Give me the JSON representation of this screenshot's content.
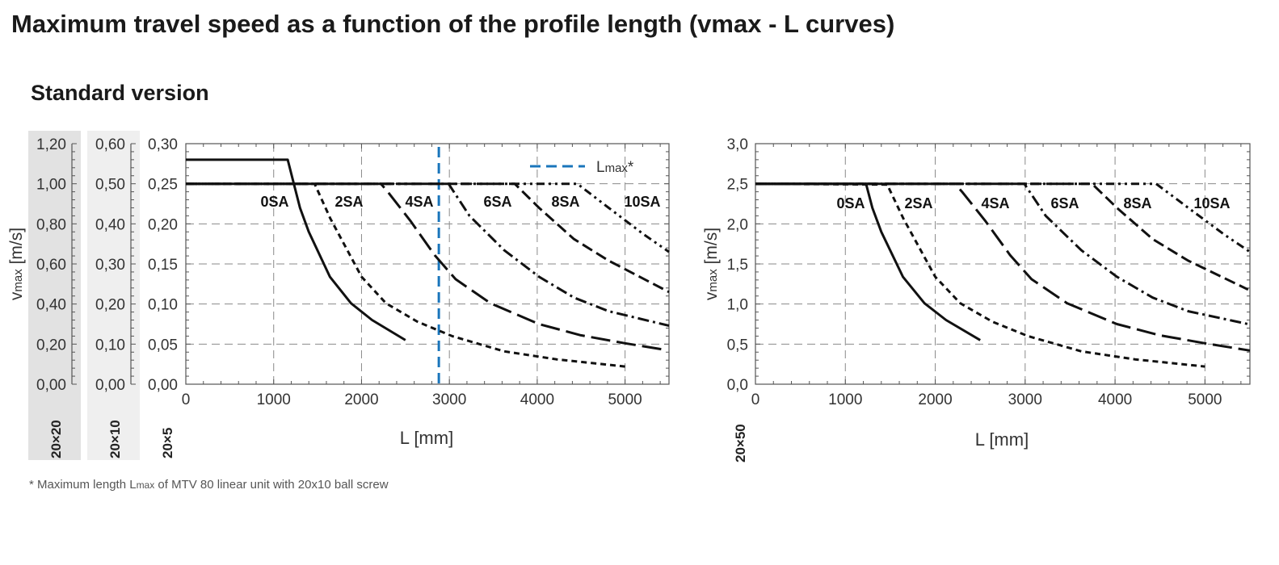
{
  "title": "Maximum travel speed as a function of the profile length (vmax - L curves)",
  "subtitle": "Standard version",
  "footnote": {
    "pre": "* Maximum length L",
    "sub": "max",
    "post": " of MTV 80 linear unit with 20x10 ball screw"
  },
  "colors": {
    "curve": "#111111",
    "grid": "#8a8a8a",
    "lmax": "#1a75bb",
    "band_20x20": "#e2e2e2",
    "band_20x10": "#efefef"
  },
  "chart_data": [
    {
      "type": "line",
      "ylabel": {
        "v": "v",
        "sub": "max",
        "unit": " [m/s]"
      },
      "xlabel": "L [mm]",
      "xlim": [
        0,
        5500
      ],
      "ylim": [
        0,
        0.3
      ],
      "xticks": [
        "0",
        "1000",
        "2000",
        "3000",
        "4000",
        "5000"
      ],
      "grid": true,
      "extra_axes": [
        {
          "name": "20×20",
          "ylim": [
            0,
            1.2
          ],
          "ticks": [
            "0,00",
            "0,20",
            "0,40",
            "0,60",
            "0,80",
            "1,00",
            "1,20"
          ]
        },
        {
          "name": "20×10",
          "ylim": [
            0,
            0.6
          ],
          "ticks": [
            "0,00",
            "0,10",
            "0,20",
            "0,30",
            "0,40",
            "0,50",
            "0,60"
          ]
        }
      ],
      "main_axis": {
        "name": "20×5",
        "ticks": [
          "0,00",
          "0,05",
          "0,10",
          "0,15",
          "0,20",
          "0,25",
          "0,30"
        ]
      },
      "reference_line": {
        "label_pre": "L",
        "label_sub": "max",
        "label_post": "*",
        "x": 2880,
        "legend": "top-right"
      },
      "series": [
        {
          "name": "0SA",
          "dash": "solid",
          "points": [
            [
              0,
              0.28
            ],
            [
              1160,
              0.28
            ],
            [
              1230,
              0.25
            ],
            [
              1300,
              0.22
            ],
            [
              1400,
              0.19
            ],
            [
              1640,
              0.134
            ],
            [
              1880,
              0.101
            ],
            [
              2120,
              0.08
            ],
            [
              2500,
              0.055
            ]
          ]
        },
        {
          "name": "2SA",
          "dash": "short-dash",
          "points": [
            [
              0,
              0.25
            ],
            [
              1466,
              0.25
            ],
            [
              1644,
              0.207
            ],
            [
              2000,
              0.134
            ],
            [
              2278,
              0.101
            ],
            [
              2635,
              0.078
            ],
            [
              3031,
              0.06
            ],
            [
              3625,
              0.041
            ],
            [
              4220,
              0.031
            ],
            [
              5000,
              0.022
            ]
          ]
        },
        {
          "name": "4SA",
          "dash": "long-dash",
          "points": [
            [
              0,
              0.25
            ],
            [
              2220,
              0.25
            ],
            [
              2298,
              0.24
            ],
            [
              2555,
              0.204
            ],
            [
              2833,
              0.161
            ],
            [
              3071,
              0.131
            ],
            [
              3467,
              0.101
            ],
            [
              4021,
              0.075
            ],
            [
              4497,
              0.061
            ],
            [
              5000,
              0.051
            ],
            [
              5450,
              0.043
            ]
          ]
        },
        {
          "name": "6SA",
          "dash": "dash-dot",
          "points": [
            [
              0,
              0.25
            ],
            [
              2991,
              0.25
            ],
            [
              3229,
              0.21
            ],
            [
              3625,
              0.167
            ],
            [
              4021,
              0.134
            ],
            [
              4418,
              0.108
            ],
            [
              4814,
              0.091
            ],
            [
              5500,
              0.073
            ]
          ]
        },
        {
          "name": "8SA",
          "dash": "dash",
          "points": [
            [
              0,
              0.25
            ],
            [
              3744,
              0.25
            ],
            [
              4021,
              0.22
            ],
            [
              4418,
              0.181
            ],
            [
              4814,
              0.154
            ],
            [
              5500,
              0.115
            ]
          ]
        },
        {
          "name": "10SA",
          "dash": "dash-dot-dot",
          "points": [
            [
              0,
              0.25
            ],
            [
              4457,
              0.25
            ],
            [
              4814,
              0.22
            ],
            [
              5210,
              0.187
            ],
            [
              5500,
              0.165
            ]
          ]
        }
      ]
    },
    {
      "type": "line",
      "ylabel": {
        "v": "v",
        "sub": "max",
        "unit": " [m/s]"
      },
      "xlabel": "L [mm]",
      "xlim": [
        0,
        5500
      ],
      "ylim": [
        0,
        3.0
      ],
      "xticks": [
        "0",
        "1000",
        "2000",
        "3000",
        "4000",
        "5000"
      ],
      "grid": true,
      "main_axis": {
        "name": "20×50",
        "ticks": [
          "0,0",
          "0,5",
          "1,0",
          "1,5",
          "2,0",
          "2,5",
          "3,0"
        ]
      },
      "series": [
        {
          "name": "0SA",
          "dash": "solid",
          "points": [
            [
              0,
              2.5
            ],
            [
              1230,
              2.5
            ],
            [
              1300,
              2.2
            ],
            [
              1400,
              1.9
            ],
            [
              1640,
              1.34
            ],
            [
              1880,
              1.01
            ],
            [
              2120,
              0.8
            ],
            [
              2500,
              0.55
            ]
          ]
        },
        {
          "name": "2SA",
          "dash": "short-dash",
          "points": [
            [
              0,
              2.5
            ],
            [
              1466,
              2.49
            ],
            [
              1644,
              2.07
            ],
            [
              2000,
              1.34
            ],
            [
              2278,
              1.01
            ],
            [
              2635,
              0.78
            ],
            [
              3031,
              0.6
            ],
            [
              3625,
              0.41
            ],
            [
              4220,
              0.31
            ],
            [
              5000,
              0.22
            ]
          ]
        },
        {
          "name": "4SA",
          "dash": "long-dash",
          "points": [
            [
              0,
              2.5
            ],
            [
              2220,
              2.5
            ],
            [
              2298,
              2.4
            ],
            [
              2555,
              2.04
            ],
            [
              2833,
              1.61
            ],
            [
              3071,
              1.31
            ],
            [
              3467,
              1.01
            ],
            [
              4021,
              0.75
            ],
            [
              4497,
              0.61
            ],
            [
              5000,
              0.51
            ],
            [
              5500,
              0.42
            ]
          ]
        },
        {
          "name": "6SA",
          "dash": "dash-dot",
          "points": [
            [
              0,
              2.5
            ],
            [
              2991,
              2.5
            ],
            [
              3229,
              2.1
            ],
            [
              3625,
              1.67
            ],
            [
              4021,
              1.34
            ],
            [
              4418,
              1.08
            ],
            [
              4814,
              0.91
            ],
            [
              5480,
              0.75
            ]
          ]
        },
        {
          "name": "8SA",
          "dash": "dash",
          "points": [
            [
              0,
              2.5
            ],
            [
              3744,
              2.5
            ],
            [
              4021,
              2.2
            ],
            [
              4418,
              1.81
            ],
            [
              4814,
              1.54
            ],
            [
              5480,
              1.18
            ]
          ]
        },
        {
          "name": "10SA",
          "dash": "dash-dot-dot",
          "points": [
            [
              0,
              2.5
            ],
            [
              4457,
              2.5
            ],
            [
              4814,
              2.2
            ],
            [
              5210,
              1.87
            ],
            [
              5500,
              1.65
            ]
          ]
        }
      ]
    }
  ]
}
